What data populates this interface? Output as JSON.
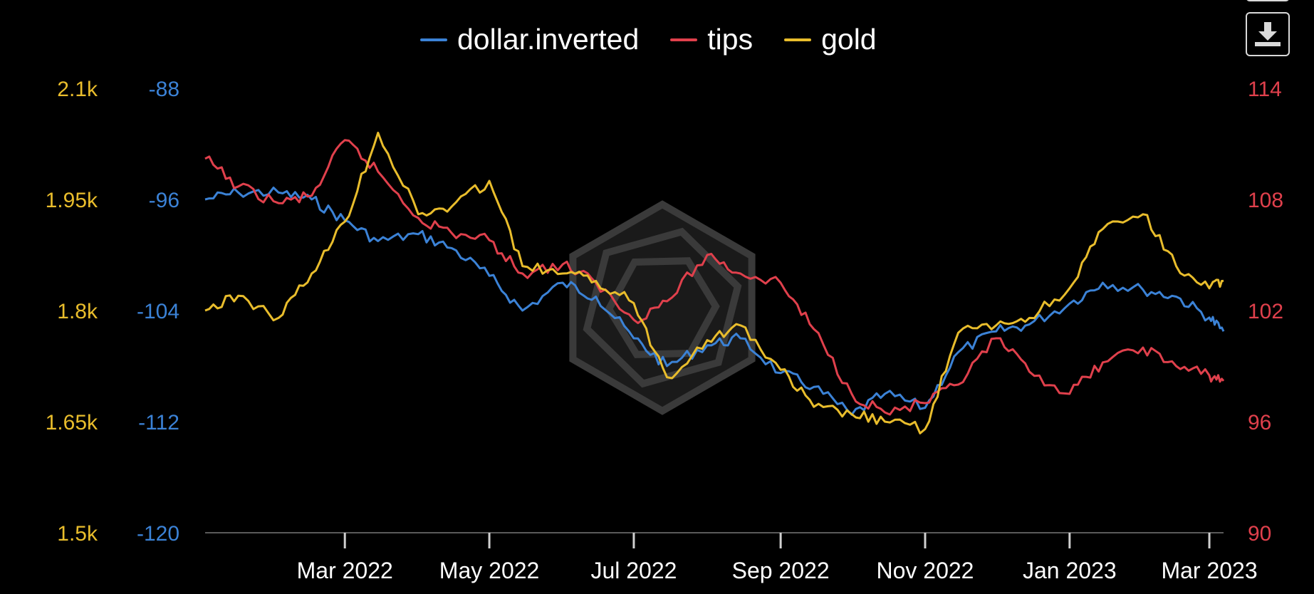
{
  "colors": {
    "dollar": "#3b82d6",
    "tips": "#e0404c",
    "gold": "#e9bd2c",
    "axis": "#5a5a5a",
    "watermark": "#3a3a3a"
  },
  "toolbar": {
    "download_icon": "download-icon"
  },
  "chart_data": {
    "type": "line",
    "title": "",
    "legend_position": "top-center",
    "grid": false,
    "x_ticks": [
      "Mar 2022",
      "May 2022",
      "Jul 2022",
      "Sep 2022",
      "Nov 2022",
      "Jan 2023",
      "Mar 2023"
    ],
    "x_range": [
      "2022-01-01",
      "2023-03-07"
    ],
    "axes": {
      "gold": {
        "side": "left-outer",
        "ticks": [
          "2.1k",
          "1.95k",
          "1.8k",
          "1.65k",
          "1.5k"
        ],
        "range": [
          1500,
          2100
        ]
      },
      "dollar": {
        "side": "left-inner",
        "ticks": [
          "-88",
          "-96",
          "-104",
          "-112",
          "-120"
        ],
        "range": [
          -120,
          -88
        ]
      },
      "tips": {
        "side": "right",
        "ticks": [
          "114",
          "108",
          "102",
          "96",
          "90"
        ],
        "range": [
          90,
          114
        ]
      }
    },
    "series": [
      {
        "name": "dollar.inverted",
        "axis": "dollar",
        "x": [
          "2022-01-01",
          "2022-01-15",
          "2022-02-01",
          "2022-02-15",
          "2022-03-01",
          "2022-03-15",
          "2022-04-01",
          "2022-04-15",
          "2022-05-01",
          "2022-05-15",
          "2022-06-01",
          "2022-06-15",
          "2022-07-01",
          "2022-07-15",
          "2022-08-01",
          "2022-08-15",
          "2022-09-01",
          "2022-09-15",
          "2022-10-01",
          "2022-10-15",
          "2022-11-01",
          "2022-11-15",
          "2022-12-01",
          "2022-12-15",
          "2023-01-01",
          "2023-01-15",
          "2023-02-01",
          "2023-02-15",
          "2023-03-01",
          "2023-03-07"
        ],
        "y": [
          -96.0,
          -95.5,
          -95.5,
          -96.0,
          -97.5,
          -99.0,
          -98.5,
          -99.5,
          -101.5,
          -104.0,
          -102.0,
          -103.0,
          -106.0,
          -108.0,
          -106.5,
          -106.0,
          -108.5,
          -109.5,
          -111.5,
          -110.0,
          -111.0,
          -107.0,
          -105.5,
          -105.0,
          -103.5,
          -102.0,
          -102.5,
          -103.0,
          -104.5,
          -105.5
        ]
      },
      {
        "name": "tips",
        "axis": "tips",
        "x": [
          "2022-01-01",
          "2022-01-15",
          "2022-02-01",
          "2022-02-15",
          "2022-03-01",
          "2022-03-15",
          "2022-04-01",
          "2022-04-15",
          "2022-05-01",
          "2022-05-15",
          "2022-06-01",
          "2022-06-15",
          "2022-07-01",
          "2022-07-15",
          "2022-08-01",
          "2022-08-15",
          "2022-09-01",
          "2022-09-15",
          "2022-10-01",
          "2022-10-15",
          "2022-11-01",
          "2022-11-15",
          "2022-12-01",
          "2022-12-15",
          "2023-01-01",
          "2023-01-15",
          "2023-02-01",
          "2023-02-15",
          "2023-03-01",
          "2023-03-07"
        ],
        "y": [
          110.2,
          108.7,
          107.8,
          108.2,
          111.2,
          109.5,
          107.0,
          106.2,
          105.8,
          104.0,
          104.5,
          103.5,
          101.5,
          102.5,
          105.0,
          104.0,
          103.5,
          101.0,
          97.5,
          96.5,
          97.0,
          98.0,
          100.5,
          98.7,
          97.5,
          99.2,
          100.0,
          99.0,
          98.5,
          98.2
        ]
      },
      {
        "name": "gold",
        "axis": "gold",
        "x": [
          "2022-01-01",
          "2022-01-15",
          "2022-02-01",
          "2022-02-15",
          "2022-03-01",
          "2022-03-15",
          "2022-04-01",
          "2022-04-15",
          "2022-05-01",
          "2022-05-15",
          "2022-06-01",
          "2022-06-15",
          "2022-07-01",
          "2022-07-15",
          "2022-08-01",
          "2022-08-15",
          "2022-09-01",
          "2022-09-15",
          "2022-10-01",
          "2022-10-15",
          "2022-11-01",
          "2022-11-15",
          "2022-12-01",
          "2022-12-15",
          "2023-01-01",
          "2023-01-15",
          "2023-02-01",
          "2023-02-15",
          "2023-03-01",
          "2023-03-07"
        ],
        "y": [
          1800,
          1820,
          1790,
          1850,
          1920,
          2040,
          1930,
          1940,
          1975,
          1860,
          1850,
          1840,
          1810,
          1710,
          1760,
          1780,
          1720,
          1670,
          1660,
          1650,
          1640,
          1770,
          1780,
          1790,
          1830,
          1910,
          1930,
          1860,
          1830,
          1840
        ]
      }
    ]
  }
}
